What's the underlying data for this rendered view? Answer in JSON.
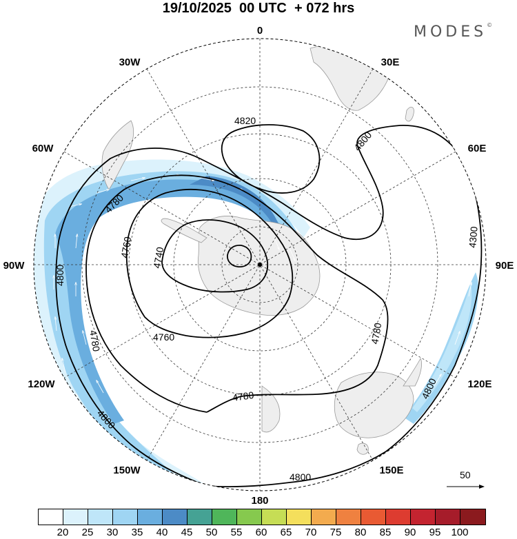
{
  "title": "19/10/2025  00 UTC  + 072 hrs",
  "brand": "MODES",
  "brand_mark": "©",
  "longitude_labels": {
    "top": "0",
    "w30": "30W",
    "e30": "30E",
    "w60": "60W",
    "e60": "60E",
    "w90": "90W",
    "e90": "90E",
    "w120": "120W",
    "e120": "120E",
    "w150": "150W",
    "e150": "150E",
    "bottom": "180"
  },
  "contour_labels": {
    "c4820": "4820",
    "c4800_ne": "4800",
    "c4800_w": "4800",
    "c4800_se": "4800",
    "c4800_sw": "4800",
    "c4800_s": "4800",
    "c4780_a": "4780",
    "c4780_b": "4780",
    "c4780_c": "4780",
    "c4780_d": "4780",
    "c4760_a": "4760",
    "c4760_b": "4760",
    "c4740": "4740",
    "c4300_e": "4300"
  },
  "wind_reference": {
    "label": "50"
  },
  "colorbar": {
    "colors": [
      "#ffffff",
      "#dcf2fc",
      "#bfe6f9",
      "#9fd5f3",
      "#6aaedf",
      "#4c8bc6",
      "#45a294",
      "#4fb65a",
      "#86c94e",
      "#c6dd55",
      "#f4df5c",
      "#f3ab4e",
      "#ef8140",
      "#e95a33",
      "#dd3c30",
      "#c42430",
      "#a61c2a",
      "#8b1a1e"
    ],
    "labels": [
      "20",
      "25",
      "30",
      "35",
      "40",
      "45",
      "50",
      "55",
      "60",
      "65",
      "70",
      "75",
      "80",
      "85",
      "90",
      "95",
      "100"
    ]
  }
}
